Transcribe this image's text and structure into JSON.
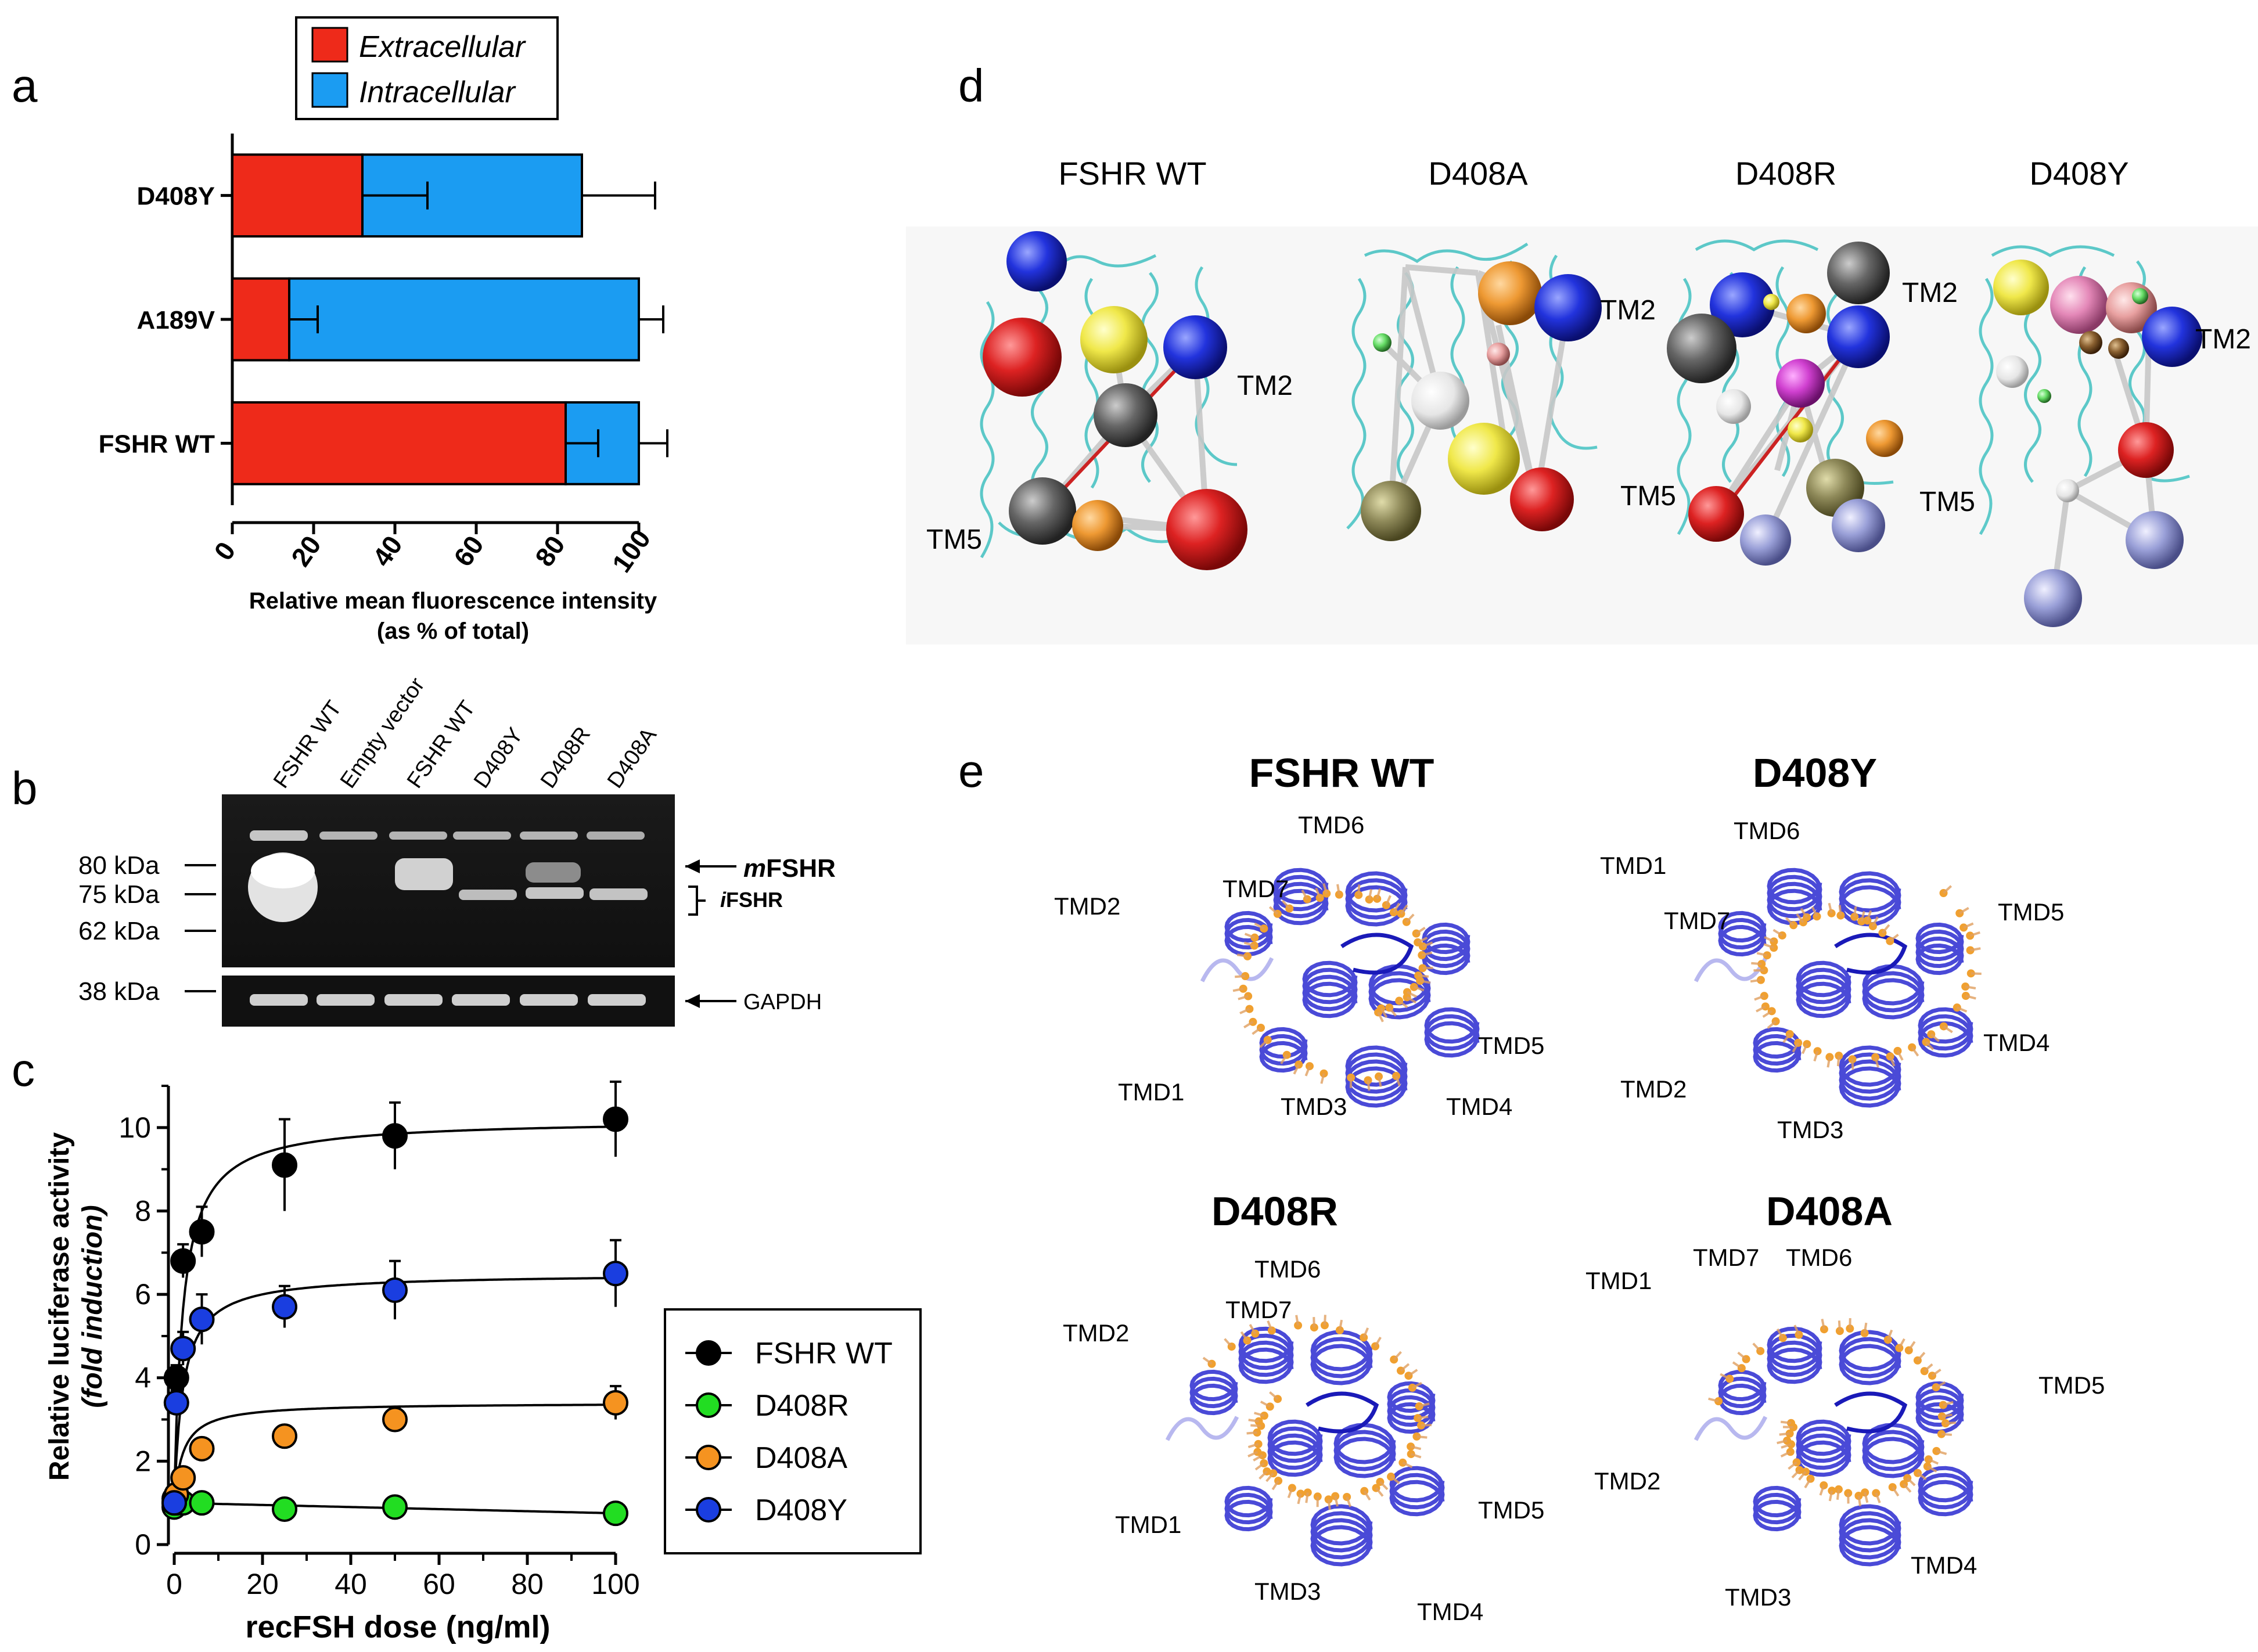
{
  "panels": {
    "a": {
      "letter": "a",
      "legend": [
        "Extracellular",
        "Intracellular"
      ],
      "xlabel": "Relative mean fluorescence intensity",
      "xlabel2": "(as % of total)"
    },
    "b": {
      "letter": "b",
      "lanes": [
        "FSHR WT",
        "Empty vector",
        "FSHR WT",
        "D408Y",
        "D408R",
        "D408A"
      ],
      "markers": [
        "80 kDa",
        "75 kDa",
        "62 kDa"
      ],
      "gapdh_marker": "38 kDa",
      "mFSHR_prefix": "m",
      "mFSHR_label": "FSHR",
      "iFSHR_prefix": "i",
      "iFSHR_label": "FSHR",
      "gapdh_label": "GAPDH"
    },
    "c": {
      "letter": "c",
      "ylabel": "Relative luciferase activity",
      "ylabel2": "(fold induction)",
      "xlabel": "recFSH dose  (ng/ml)"
    },
    "d": {
      "letter": "d",
      "titles": [
        "FSHR WT",
        "D408A",
        "D408R",
        "D408Y"
      ],
      "labels": {
        "tm2": "TM2",
        "tm5": "TM5"
      }
    },
    "e": {
      "letter": "e",
      "titles": [
        "FSHR WT",
        "D408Y",
        "D408R",
        "D408A"
      ],
      "tmd": {
        "t1": "TMD1",
        "t2": "TMD2",
        "t3": "TMD3",
        "t4": "TMD4",
        "t5": "TMD5",
        "t6": "TMD6",
        "t7": "TMD7"
      }
    }
  },
  "chart_data": [
    {
      "type": "bar",
      "orientation": "horizontal",
      "stacked": true,
      "categories": [
        "D408Y",
        "A189V",
        "FSHR WT"
      ],
      "series": [
        {
          "name": "Extracellular",
          "color": "#ee2a1a",
          "values": [
            32,
            14,
            82
          ],
          "error": [
            16,
            7,
            8
          ]
        },
        {
          "name": "Intracellular",
          "color": "#1b9cf2",
          "values": [
            54,
            86,
            18
          ],
          "error": [
            18,
            6,
            7
          ]
        }
      ],
      "xlim": [
        0,
        100
      ],
      "xticks": [
        "0",
        "20",
        "40",
        "60",
        "80",
        "100"
      ],
      "xlabel": "Relative mean fluorescence intensity (as % of total)"
    },
    {
      "type": "scatter",
      "xlabel": "recFSH dose  (ng/ml)",
      "ylabel": "Relative luciferase activity (fold induction)",
      "xlim": [
        0,
        100
      ],
      "ylim": [
        0,
        11
      ],
      "xticks": [
        "0",
        "20",
        "40",
        "60",
        "80",
        "100"
      ],
      "yticks": [
        "0",
        "2",
        "4",
        "6",
        "8",
        "10"
      ],
      "legend_position": "right",
      "series": [
        {
          "name": "FSHR WT",
          "color": "#000000",
          "x": [
            0,
            0.5,
            2,
            6.25,
            25,
            50,
            100
          ],
          "y": [
            1.1,
            4.0,
            6.8,
            7.5,
            9.1,
            9.8,
            10.2
          ],
          "error": [
            0.2,
            0.3,
            0.4,
            0.6,
            1.1,
            0.8,
            0.9
          ]
        },
        {
          "name": "D408R",
          "color": "#22dd22",
          "x": [
            0,
            0.5,
            2,
            6.25,
            25,
            50,
            100
          ],
          "y": [
            0.9,
            1.0,
            1.0,
            1.0,
            0.85,
            0.9,
            0.75
          ],
          "error": [
            0.1,
            0.1,
            0.1,
            0.1,
            0.1,
            0.1,
            0.1
          ]
        },
        {
          "name": "D408A",
          "color": "#f59320",
          "x": [
            0,
            0.5,
            2,
            6.25,
            25,
            50,
            100
          ],
          "y": [
            1.0,
            1.2,
            1.6,
            2.3,
            2.6,
            3.0,
            3.4
          ],
          "error": [
            0.1,
            0.1,
            0.15,
            0.2,
            0.2,
            0.3,
            0.4
          ]
        },
        {
          "name": "D408Y",
          "color": "#1a3ee0",
          "x": [
            0,
            0.5,
            2,
            6.25,
            25,
            50,
            100
          ],
          "y": [
            1.0,
            3.4,
            4.7,
            5.4,
            5.7,
            6.1,
            6.5
          ],
          "error": [
            0.1,
            0.3,
            0.4,
            0.6,
            0.5,
            0.7,
            0.8
          ]
        }
      ]
    }
  ]
}
